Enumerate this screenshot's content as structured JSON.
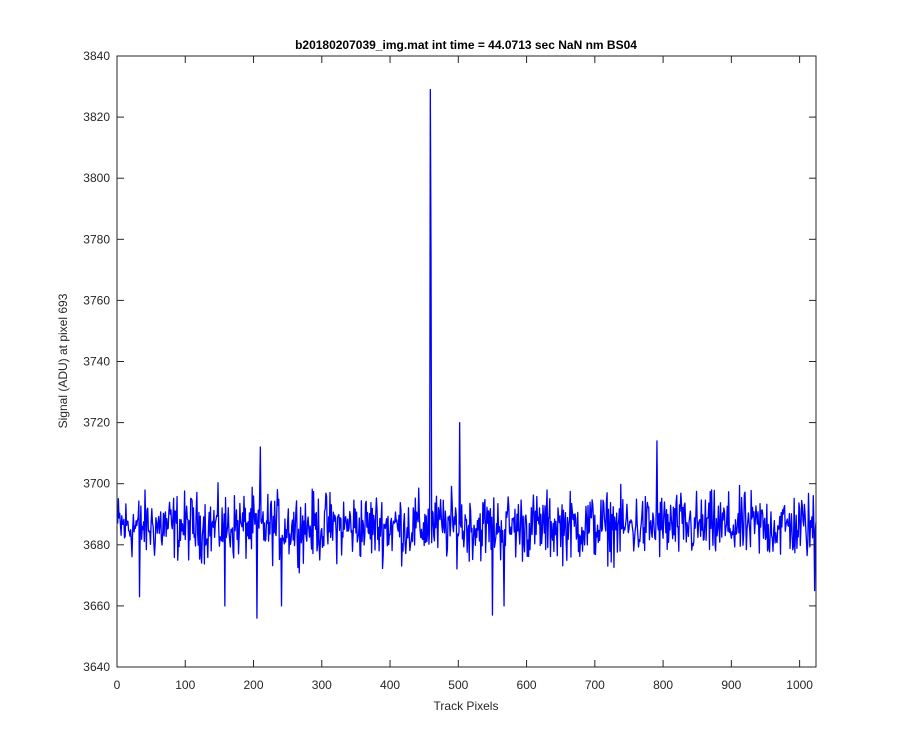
{
  "chart_data": {
    "type": "line",
    "title": "b20180207039_img.mat int time = 44.0713 sec  NaN nm BS04",
    "xlabel": "Track Pixels",
    "ylabel": "Signal (ADU) at pixel 693",
    "xlim": [
      0,
      1024
    ],
    "ylim": [
      3640,
      3840
    ],
    "xticks": [
      0,
      100,
      200,
      300,
      400,
      500,
      600,
      700,
      800,
      900,
      1000
    ],
    "yticks": [
      3640,
      3660,
      3680,
      3700,
      3720,
      3740,
      3760,
      3780,
      3800,
      3820,
      3840
    ],
    "grid": false,
    "series_color": "#0000ff",
    "series": [
      {
        "name": "",
        "baseline": 3686,
        "noise_amplitude": 10,
        "x_start": 1,
        "x_end": 1024,
        "features": [
          {
            "x": 33,
            "y": 3663
          },
          {
            "x": 158,
            "y": 3660
          },
          {
            "x": 205,
            "y": 3656
          },
          {
            "x": 210,
            "y": 3712
          },
          {
            "x": 241,
            "y": 3660
          },
          {
            "x": 459,
            "y": 3829
          },
          {
            "x": 460,
            "y": 3776
          },
          {
            "x": 502,
            "y": 3720
          },
          {
            "x": 550,
            "y": 3657
          },
          {
            "x": 567,
            "y": 3660
          },
          {
            "x": 791,
            "y": 3714
          },
          {
            "x": 1022,
            "y": 3665
          }
        ]
      }
    ]
  }
}
